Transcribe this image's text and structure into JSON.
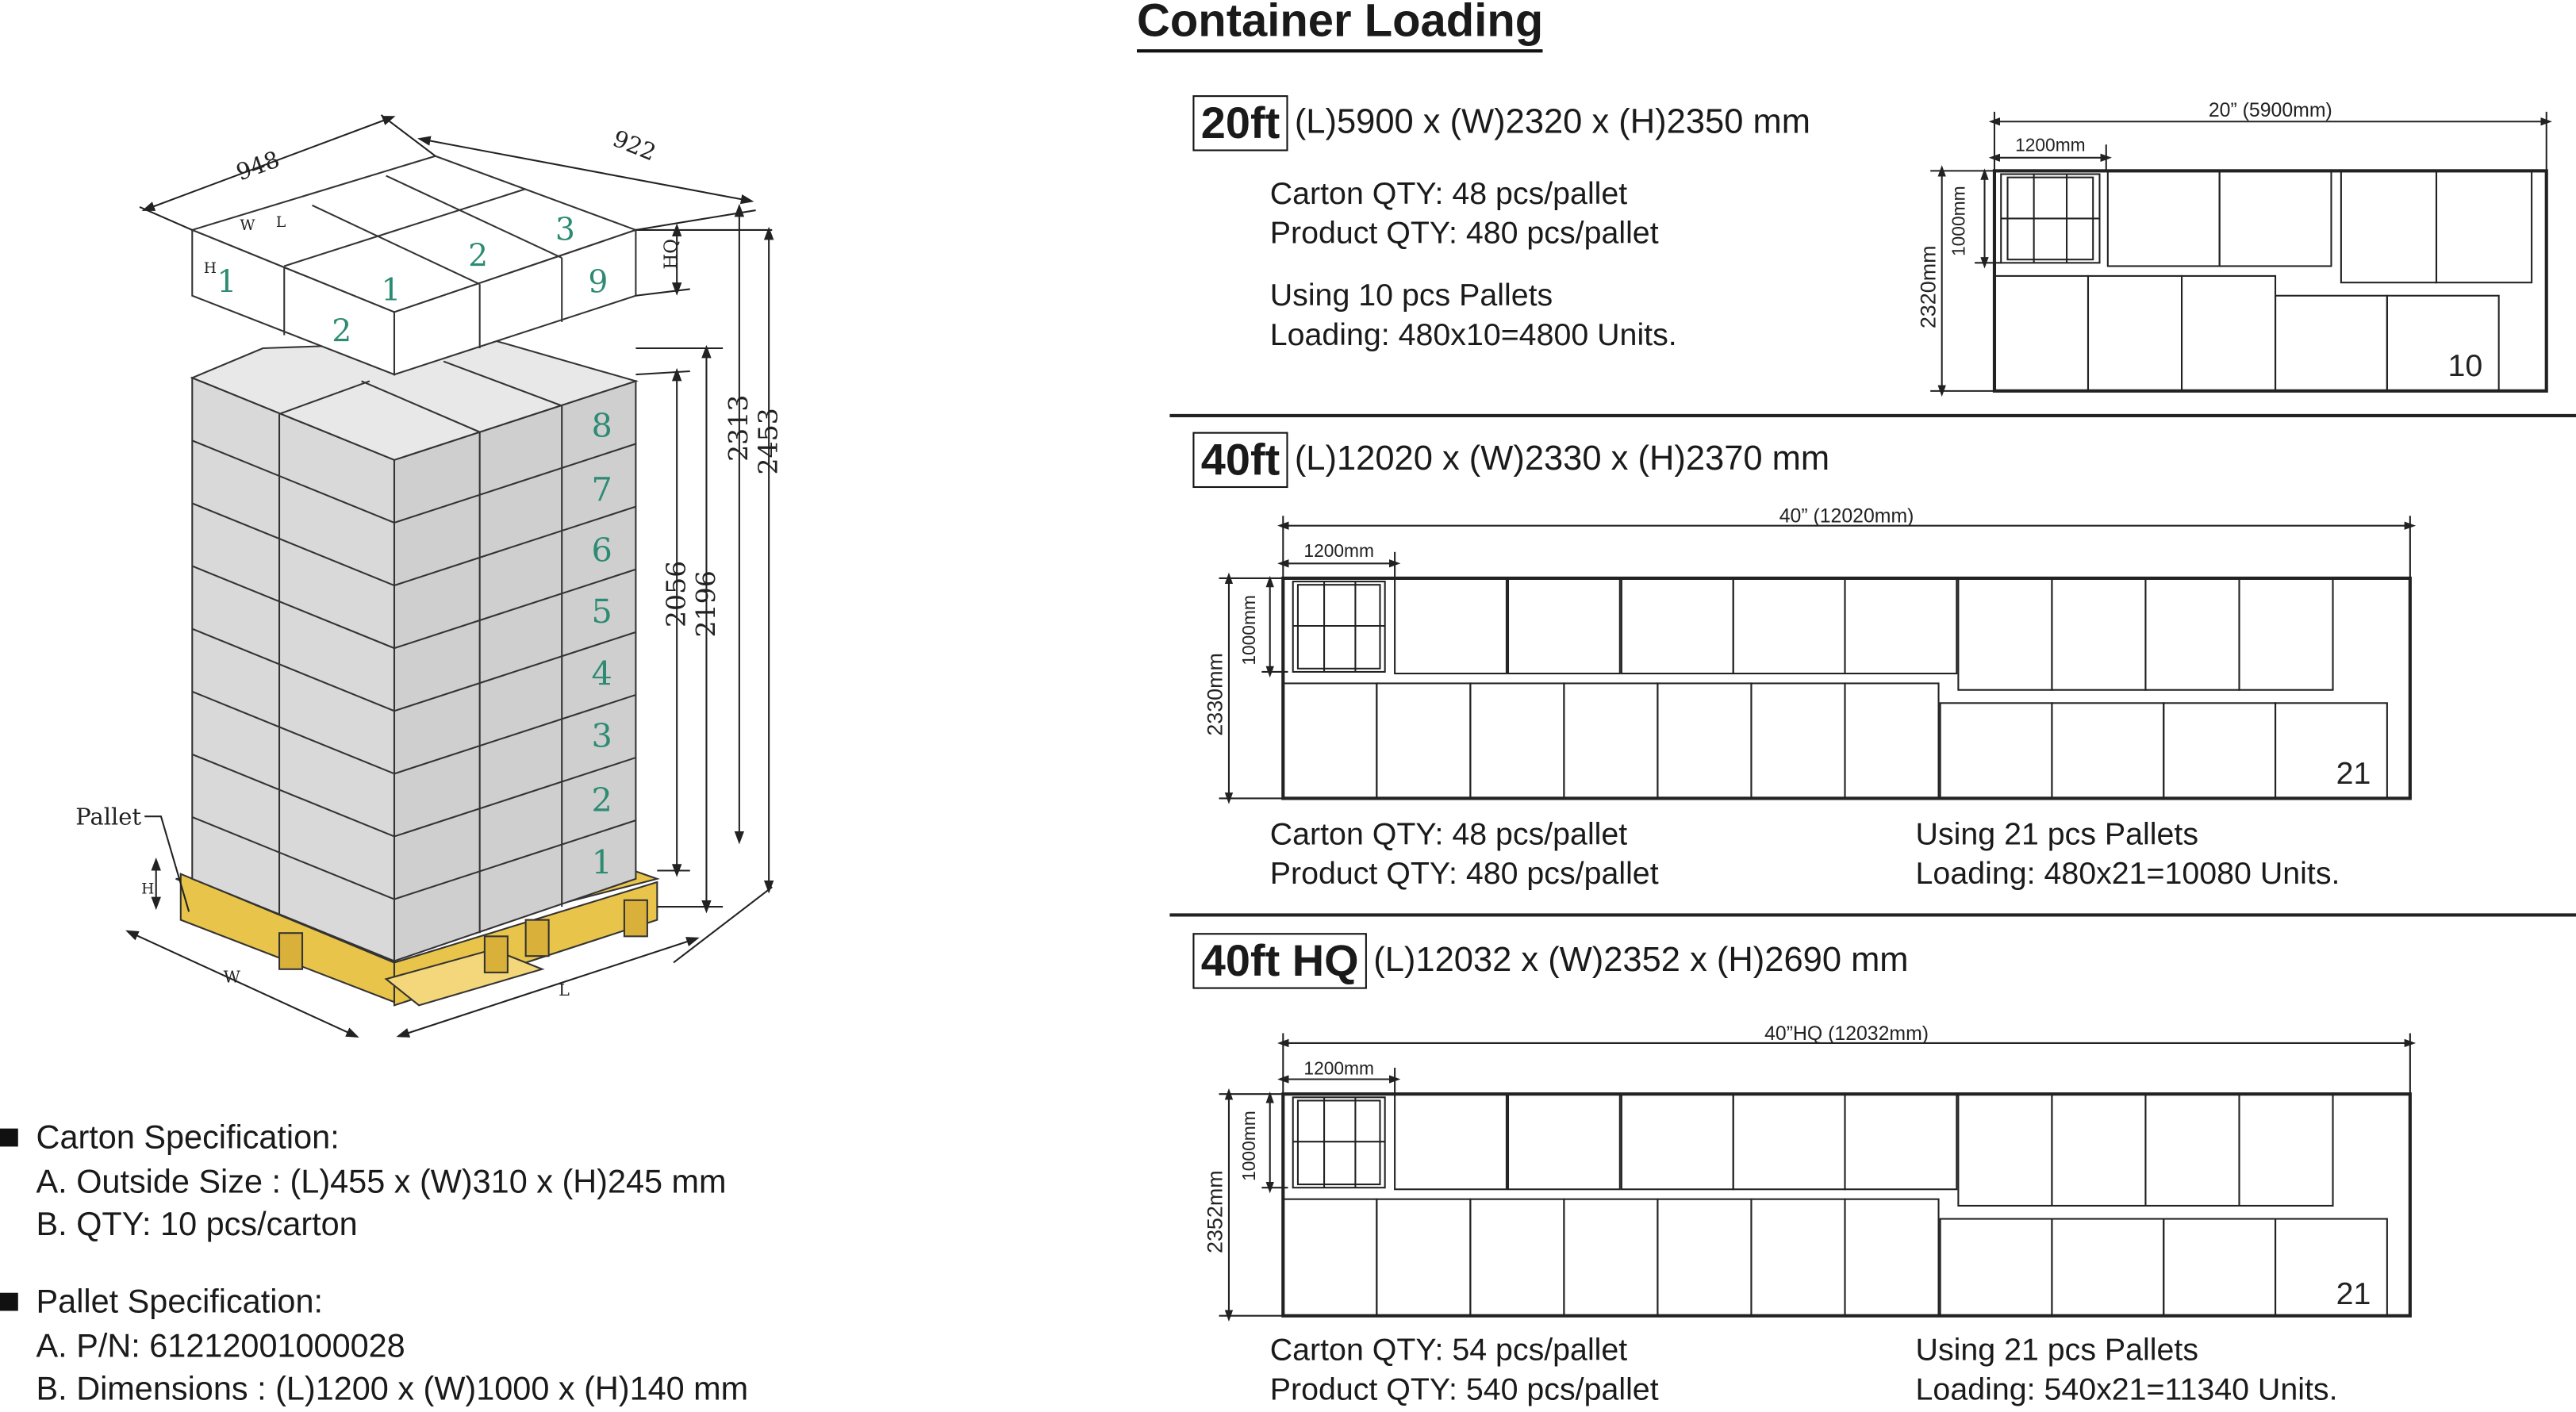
{
  "pallet_drawing": {
    "dim_top_length": "948",
    "dim_top_width": "922",
    "dim_hq": "HQ",
    "dim_h1": "2056",
    "dim_h2": "2196",
    "dim_h3": "2313",
    "dim_h4": "2453",
    "pallet_label": "Pallet",
    "pallet_h": "H",
    "pallet_w": "W",
    "pallet_l": "L",
    "layer_numbers": [
      "1",
      "2",
      "3",
      "4",
      "5",
      "6",
      "7",
      "8"
    ],
    "top_numbers": [
      "1",
      "2",
      "1",
      "2",
      "3",
      "9"
    ],
    "carton_letters": [
      "H",
      "W",
      "L"
    ]
  },
  "carton_spec": {
    "title": "Carton Specification:",
    "a": "A. Outside Size : (L)455 x (W)310 x (H)245 mm",
    "b": "B. QTY: 10 pcs/carton"
  },
  "pallet_spec": {
    "title": "Pallet Specification:",
    "a": "A. P/N: 61212001000028",
    "b": "B. Dimensions : (L)1200 x (W)1000 x (H)140 mm"
  },
  "container_loading": {
    "title": "Container Loading",
    "c20": {
      "badge": "20ft",
      "dims": "(L)5900 x (W)2320 x (H)2350 mm",
      "carton_qty": "Carton QTY: 48 pcs/pallet",
      "product_qty": "Product QTY: 480 pcs/pallet",
      "using": "Using 10 pcs Pallets",
      "loading": "Loading: 480x10=4800 Units.",
      "diagram_length": "20” (5900mm)",
      "pallet_len": "1200mm",
      "pallet_w": "1000mm",
      "inner_w": "2320mm",
      "count": "10"
    },
    "c40": {
      "badge": "40ft",
      "dims": "(L)12020 x (W)2330 x (H)2370 mm",
      "carton_qty": "Carton QTY: 48 pcs/pallet",
      "product_qty": "Product QTY: 480 pcs/pallet",
      "using": "Using 21 pcs Pallets",
      "loading": "Loading: 480x21=10080 Units.",
      "diagram_length": "40” (12020mm)",
      "pallet_len": "1200mm",
      "pallet_w": "1000mm",
      "inner_w": "2330mm",
      "count": "21"
    },
    "c40hq": {
      "badge": "40ft HQ",
      "dims": "(L)12032 x (W)2352 x (H)2690 mm",
      "carton_qty": "Carton QTY: 54 pcs/pallet",
      "product_qty": "Product QTY: 540 pcs/pallet",
      "using": "Using 21 pcs Pallets",
      "loading": "Loading: 540x21=11340 Units.",
      "diagram_length": "40”HQ (12032mm)",
      "pallet_len": "1200mm",
      "pallet_w": "1000mm",
      "inner_w": "2352mm",
      "count": "21"
    }
  },
  "colors": {
    "carton_front": "#d9d9d9",
    "carton_side": "#cfcfcf",
    "carton_top": "#ffffff",
    "pallet_wood": "#e8c44a",
    "number_green": "#2e8b73"
  }
}
